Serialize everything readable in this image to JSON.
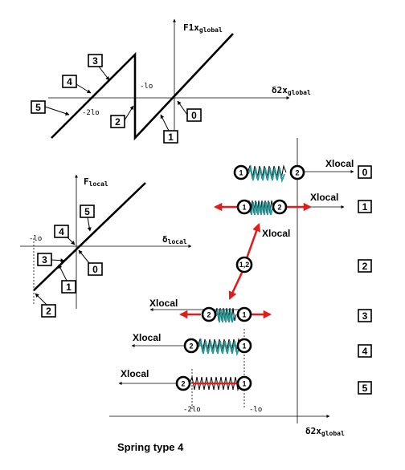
{
  "top_graph": {
    "y_axis": "F1x",
    "y_axis_sub": "global",
    "x_axis": "δ2x",
    "x_axis_sub": "global",
    "tick_neg_lo": "-lo",
    "tick_neg_2lo": "-2lo",
    "labels": [
      "0",
      "1",
      "2",
      "3",
      "4",
      "5"
    ]
  },
  "left_graph": {
    "y_axis": "F",
    "y_axis_sub": "local",
    "x_axis": "δ",
    "x_axis_sub": "local",
    "tick_neg_lo": "-lo",
    "labels": [
      "0",
      "1",
      "2",
      "3",
      "4",
      "5"
    ]
  },
  "springs": {
    "xlocal": "Xlocal",
    "node_1": "1",
    "node_2": "2",
    "node_12": "1,2",
    "state_labels": [
      "0",
      "1",
      "2",
      "3",
      "4",
      "5"
    ]
  },
  "bottom_axis": {
    "x_axis": "δ2x",
    "x_axis_sub": "global",
    "tick_neg_2lo": "-2lo",
    "tick_neg_lo": "-lo"
  },
  "caption": "Spring type 4",
  "colors": {
    "arrow": "#e21b1b",
    "coil": "#2a9a9a"
  }
}
